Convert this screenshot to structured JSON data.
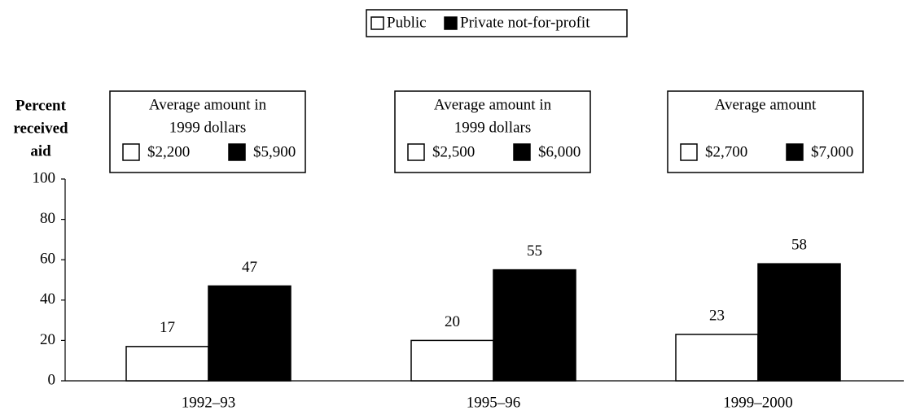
{
  "chart_data": {
    "type": "bar",
    "ylabel": [
      "Percent",
      "received",
      "aid"
    ],
    "categories": [
      "1992–93",
      "1995–96",
      "1999–2000"
    ],
    "series": [
      {
        "name": "Public",
        "color": "#ffffff",
        "values": [
          17,
          20,
          23
        ]
      },
      {
        "name": "Private not-for-profit",
        "color": "#000000",
        "values": [
          47,
          55,
          58
        ]
      }
    ],
    "ylim": [
      0,
      100
    ],
    "yticks": [
      0,
      20,
      40,
      60,
      80,
      100
    ],
    "annotations": [
      {
        "title": [
          "Average amount in",
          "1999 dollars"
        ],
        "amounts": [
          "$2,200",
          "$5,900"
        ]
      },
      {
        "title": [
          "Average amount in",
          "1999 dollars"
        ],
        "amounts": [
          "$2,500",
          "$6,000"
        ]
      },
      {
        "title": [
          "Average amount"
        ],
        "amounts": [
          "$2,700",
          "$7,000"
        ]
      }
    ]
  }
}
